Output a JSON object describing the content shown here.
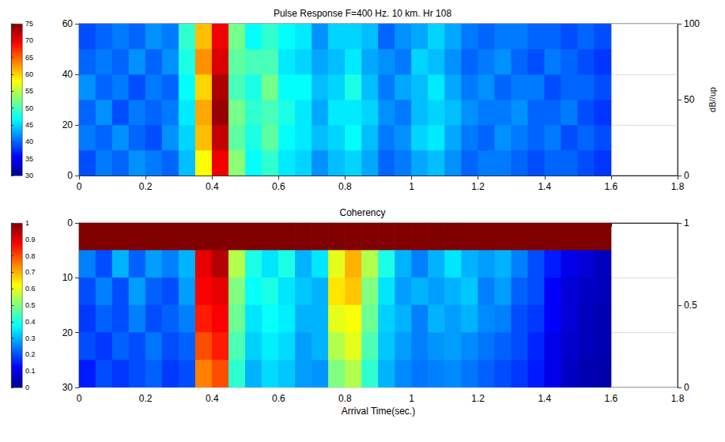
{
  "chart_data": [
    {
      "type": "heatmap",
      "title": "Pulse Response F=400 Hz. 10 km. Hr 108",
      "zlabel": "dB//up",
      "xlim": [
        0,
        1.8
      ],
      "xticks": [
        0,
        0.2,
        0.4,
        0.6,
        0.8,
        1,
        1.2,
        1.4,
        1.6,
        1.8
      ],
      "ylim": [
        0,
        60
      ],
      "yticks": [
        0,
        20,
        40,
        60
      ],
      "zlim": [
        0,
        100
      ],
      "zticks": [
        0,
        50,
        100
      ],
      "grid": true,
      "x_bins": [
        0,
        0.05,
        0.1,
        0.15,
        0.2,
        0.25,
        0.3,
        0.35,
        0.4,
        0.45,
        0.5,
        0.55,
        0.6,
        0.65,
        0.7,
        0.75,
        0.8,
        0.85,
        0.9,
        0.95,
        1,
        1.05,
        1.1,
        1.15,
        1.2,
        1.25,
        1.3,
        1.35,
        1.4,
        1.45,
        1.5,
        1.55,
        1.6
      ],
      "y_bins": [
        0,
        10,
        20,
        30,
        40,
        50,
        60
      ],
      "cells": [
        [
          39,
          41,
          40,
          42,
          41,
          40,
          44,
          58,
          70,
          53,
          47,
          49,
          46,
          45,
          42,
          44,
          45,
          43,
          40,
          41,
          43,
          44,
          42,
          40,
          41,
          41,
          40,
          39,
          40,
          40,
          39,
          38
        ],
        [
          41,
          40,
          42,
          40,
          39,
          42,
          45,
          61,
          72,
          51,
          48,
          51,
          47,
          46,
          44,
          45,
          47,
          44,
          41,
          42,
          45,
          46,
          43,
          41,
          40,
          42,
          41,
          40,
          41,
          39,
          40,
          39
        ],
        [
          40,
          42,
          39,
          41,
          40,
          41,
          46,
          62,
          74,
          52,
          49,
          50,
          48,
          46,
          43,
          46,
          46,
          45,
          42,
          41,
          44,
          45,
          44,
          42,
          41,
          41,
          42,
          40,
          40,
          41,
          39,
          38
        ],
        [
          42,
          40,
          41,
          39,
          41,
          40,
          47,
          60,
          73,
          50,
          48,
          52,
          47,
          47,
          44,
          45,
          48,
          44,
          41,
          43,
          44,
          46,
          43,
          41,
          42,
          40,
          41,
          41,
          39,
          40,
          40,
          39
        ],
        [
          40,
          41,
          40,
          42,
          40,
          42,
          48,
          63,
          71,
          51,
          50,
          50,
          46,
          45,
          43,
          44,
          46,
          43,
          42,
          41,
          45,
          44,
          42,
          40,
          41,
          42,
          40,
          39,
          41,
          40,
          39,
          38
        ],
        [
          39,
          40,
          41,
          40,
          42,
          41,
          49,
          61,
          70,
          52,
          47,
          49,
          47,
          46,
          42,
          45,
          45,
          44,
          40,
          42,
          43,
          45,
          43,
          41,
          40,
          41,
          41,
          40,
          40,
          39,
          40,
          39
        ]
      ],
      "colorbar": {
        "range": [
          30,
          75
        ],
        "ticks": [
          30,
          35,
          40,
          45,
          50,
          55,
          60,
          65,
          70,
          75
        ]
      }
    },
    {
      "type": "heatmap",
      "title": "Coherency",
      "xlabel": "Arrival Time(sec.)",
      "xlim": [
        0,
        1.8
      ],
      "xticks": [
        0,
        0.2,
        0.4,
        0.6,
        0.8,
        1,
        1.2,
        1.4,
        1.6,
        1.8
      ],
      "ylim": [
        0,
        30
      ],
      "yticks": [
        0,
        10,
        20,
        30
      ],
      "zlim": [
        0,
        1
      ],
      "zticks": [
        0,
        0.5,
        1
      ],
      "grid": true,
      "x_bins": [
        0,
        0.05,
        0.1,
        0.15,
        0.2,
        0.25,
        0.3,
        0.35,
        0.4,
        0.45,
        0.5,
        0.55,
        0.6,
        0.65,
        0.7,
        0.75,
        0.8,
        0.85,
        0.9,
        0.95,
        1,
        1.05,
        1.1,
        1.15,
        1.2,
        1.25,
        1.3,
        1.35,
        1.4,
        1.45,
        1.5,
        1.55,
        1.6
      ],
      "y_bins": [
        0,
        5,
        10,
        15,
        20,
        25,
        30
      ],
      "cells": [
        [
          1,
          1,
          1,
          1,
          1,
          1,
          1,
          1,
          1,
          1,
          1,
          1,
          1,
          1,
          1,
          1,
          1,
          1,
          1,
          1,
          1,
          1,
          1,
          1,
          1,
          1,
          1,
          1,
          1,
          1,
          1,
          1
        ],
        [
          0.25,
          0.2,
          0.3,
          0.22,
          0.28,
          0.25,
          0.3,
          0.9,
          0.95,
          0.55,
          0.4,
          0.35,
          0.4,
          0.3,
          0.35,
          0.6,
          0.7,
          0.55,
          0.4,
          0.3,
          0.25,
          0.3,
          0.35,
          0.3,
          0.28,
          0.3,
          0.25,
          0.2,
          0.15,
          0.1,
          0.08,
          0.05
        ],
        [
          0.2,
          0.25,
          0.2,
          0.28,
          0.22,
          0.2,
          0.28,
          0.88,
          0.9,
          0.5,
          0.38,
          0.4,
          0.35,
          0.32,
          0.3,
          0.65,
          0.68,
          0.5,
          0.35,
          0.28,
          0.3,
          0.28,
          0.3,
          0.32,
          0.25,
          0.28,
          0.22,
          0.2,
          0.12,
          0.08,
          0.06,
          0.05
        ],
        [
          0.18,
          0.22,
          0.2,
          0.25,
          0.2,
          0.22,
          0.25,
          0.85,
          0.88,
          0.48,
          0.35,
          0.38,
          0.36,
          0.3,
          0.3,
          0.6,
          0.62,
          0.48,
          0.33,
          0.3,
          0.25,
          0.3,
          0.28,
          0.3,
          0.26,
          0.25,
          0.2,
          0.18,
          0.12,
          0.08,
          0.05,
          0.04
        ],
        [
          0.2,
          0.18,
          0.22,
          0.2,
          0.24,
          0.2,
          0.22,
          0.8,
          0.85,
          0.45,
          0.33,
          0.36,
          0.34,
          0.28,
          0.3,
          0.55,
          0.6,
          0.45,
          0.32,
          0.28,
          0.25,
          0.27,
          0.28,
          0.26,
          0.24,
          0.22,
          0.2,
          0.16,
          0.1,
          0.07,
          0.05,
          0.04
        ],
        [
          0.15,
          0.2,
          0.18,
          0.2,
          0.22,
          0.18,
          0.2,
          0.75,
          0.8,
          0.42,
          0.3,
          0.34,
          0.32,
          0.28,
          0.27,
          0.5,
          0.55,
          0.42,
          0.3,
          0.26,
          0.24,
          0.25,
          0.26,
          0.24,
          0.22,
          0.2,
          0.18,
          0.15,
          0.1,
          0.06,
          0.04,
          0.03
        ]
      ],
      "colorbar": {
        "range": [
          0,
          1
        ],
        "ticks": [
          0,
          0.1,
          0.2,
          0.3,
          0.4,
          0.5,
          0.6,
          0.7,
          0.8,
          0.9,
          1
        ]
      }
    }
  ]
}
